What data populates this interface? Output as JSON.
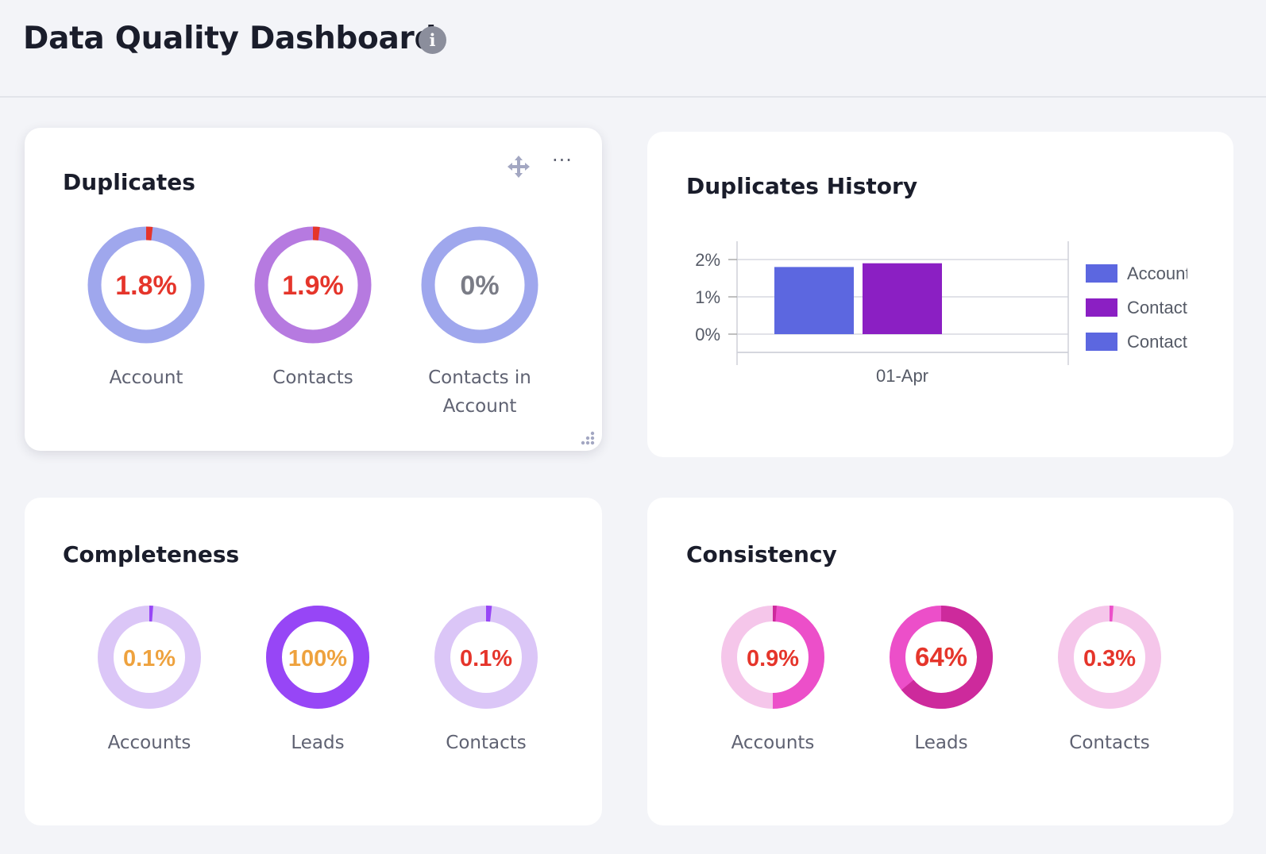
{
  "page": {
    "title": "Data Quality Dashboard",
    "info_icon": "info-icon"
  },
  "colors": {
    "red": "#e5352b",
    "grey_text": "#7a7c86",
    "orange": "#eea23e",
    "dup_account": "#9fa7ed",
    "dup_contacts": "#b67ae0",
    "dup_contacts_in_account": "#9fa7ed",
    "comp_light": "#dbc6f7",
    "comp_strong": "#9746f6",
    "cons_light": "#f5c6ea",
    "cons_mid": "#ec4fc9",
    "cons_dark": "#cd2a9c"
  },
  "duplicates": {
    "title": "Duplicates",
    "items": [
      {
        "value": "1.8%",
        "label": "Account",
        "fraction": 0.018
      },
      {
        "value": "1.9%",
        "label": "Contacts",
        "fraction": 0.019
      },
      {
        "value": "0%",
        "label": "Contacts in Account",
        "fraction": 0
      }
    ]
  },
  "history": {
    "title": "Duplicates History",
    "chart_data": {
      "type": "bar",
      "categories": [
        "01-Apr"
      ],
      "series": [
        {
          "name": "Account",
          "values": [
            1.8
          ],
          "color": "#5c67e0"
        },
        {
          "name": "Contacts",
          "values": [
            1.9
          ],
          "color": "#8b1fc3"
        },
        {
          "name": "Contacts",
          "values": [
            0
          ],
          "color": "#5c67e0"
        }
      ],
      "yticks": [
        "0%",
        "1%",
        "2%"
      ],
      "ylim": [
        0,
        2
      ],
      "legend_position": "right"
    }
  },
  "completeness": {
    "title": "Completeness",
    "items": [
      {
        "value": "0.1%",
        "label": "Accounts",
        "fraction": 0.001
      },
      {
        "value": "100%",
        "label": "Leads",
        "fraction": 1.0
      },
      {
        "value": "0.1%",
        "label": "Contacts",
        "fraction": 0.001
      }
    ]
  },
  "consistency": {
    "title": "Consistency",
    "items": [
      {
        "value": "0.9%",
        "label": "Accounts",
        "fraction": 0.009
      },
      {
        "value": "64%",
        "label": "Leads",
        "fraction": 0.64
      },
      {
        "value": "0.3%",
        "label": "Contacts",
        "fraction": 0.003
      }
    ]
  }
}
